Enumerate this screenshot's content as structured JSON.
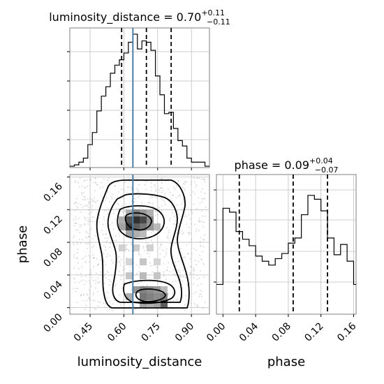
{
  "chart_data": {
    "type": "corner",
    "parameters": [
      "luminosity_distance",
      "phase"
    ],
    "truth": {
      "luminosity_distance": 0.64
    },
    "panels": [
      {
        "id": "hist_luminosity_distance",
        "type": "histogram-step",
        "title": {
          "base": "luminosity_distance = 0.70",
          "sup": "+0.11",
          "sub": "−0.11"
        },
        "xlim": [
          0.36,
          0.98
        ],
        "quantiles": [
          0.59,
          0.7,
          0.81
        ],
        "truth": 0.64,
        "bins": [
          0.36,
          0.38,
          0.4,
          0.42,
          0.44,
          0.46,
          0.48,
          0.5,
          0.52,
          0.54,
          0.56,
          0.58,
          0.6,
          0.62,
          0.64,
          0.66,
          0.68,
          0.7,
          0.72,
          0.74,
          0.76,
          0.78,
          0.8,
          0.82,
          0.84,
          0.86,
          0.88,
          0.9,
          0.92,
          0.94,
          0.96,
          0.98
        ],
        "counts": [
          0.01,
          0.02,
          0.04,
          0.07,
          0.17,
          0.26,
          0.42,
          0.53,
          0.6,
          0.7,
          0.76,
          0.8,
          0.85,
          0.93,
          0.99,
          0.88,
          0.94,
          0.93,
          0.87,
          0.68,
          0.54,
          0.4,
          0.41,
          0.29,
          0.2,
          0.16,
          0.07,
          0.04,
          0.04,
          0.04,
          0.01
        ],
        "xticks": [
          0.45,
          0.6,
          0.75,
          0.9
        ]
      },
      {
        "id": "hist_phase",
        "type": "histogram-step",
        "title": {
          "base": "phase = 0.09",
          "sup": "+0.04",
          "sub": "−0.07"
        },
        "xlim": [
          -0.008,
          0.163
        ],
        "quantiles": [
          0.02,
          0.086,
          0.128
        ],
        "bins": [
          -0.008,
          -0.004,
          0.0,
          0.004,
          0.008,
          0.012,
          0.016,
          0.02,
          0.024,
          0.028,
          0.032,
          0.036,
          0.04,
          0.044,
          0.048,
          0.052,
          0.056,
          0.06,
          0.064,
          0.068,
          0.072,
          0.076,
          0.08,
          0.084,
          0.088,
          0.092,
          0.096,
          0.1,
          0.104,
          0.108,
          0.112,
          0.116,
          0.12,
          0.124,
          0.128,
          0.132,
          0.136,
          0.14,
          0.144,
          0.148,
          0.152,
          0.156,
          0.16,
          0.163
        ],
        "counts": [
          0.23,
          0.23,
          0.82,
          0.82,
          0.79,
          0.79,
          0.64,
          0.64,
          0.58,
          0.58,
          0.53,
          0.53,
          0.45,
          0.45,
          0.41,
          0.41,
          0.38,
          0.38,
          0.43,
          0.43,
          0.47,
          0.47,
          0.55,
          0.55,
          0.59,
          0.59,
          0.77,
          0.77,
          0.92,
          0.92,
          0.89,
          0.89,
          0.8,
          0.8,
          0.59,
          0.59,
          0.46,
          0.46,
          0.54,
          0.54,
          0.41,
          0.41,
          0.23
        ],
        "xticks": [
          0.0,
          0.04,
          0.08,
          0.12,
          0.16
        ]
      },
      {
        "id": "scatter_density",
        "type": "2d-density",
        "x": "luminosity_distance",
        "y": "phase",
        "xlim": [
          0.36,
          0.98
        ],
        "ylim": [
          -0.008,
          0.163
        ],
        "xticks": [
          0.45,
          0.6,
          0.75,
          0.9
        ],
        "yticks": [
          0.0,
          0.04,
          0.08,
          0.12,
          0.16
        ],
        "truth_x": 0.64,
        "density_peaks": [
          {
            "x": 0.65,
            "y": 0.127,
            "weight": 1.0
          },
          {
            "x": 0.65,
            "y": 0.015,
            "weight": 0.85
          }
        ]
      }
    ],
    "xlabels": [
      "luminosity_distance",
      "phase"
    ],
    "ylabels": [
      "",
      "phase"
    ]
  },
  "labels": {
    "xlabel_left": "luminosity_distance",
    "xlabel_right": "phase",
    "ylabel_left": "phase",
    "hist1_title_base": "luminosity_distance = 0.70",
    "hist1_title_sup": "+0.11",
    "hist1_title_sub": "−0.11",
    "hist2_title_base": "phase = 0.09",
    "hist2_title_sup": "+0.04",
    "hist2_title_sub": "−0.07",
    "tick_x_lum": [
      "0.45",
      "0.60",
      "0.75",
      "0.90"
    ],
    "tick_y_phase": [
      "0.00",
      "0.04",
      "0.08",
      "0.12",
      "0.16"
    ],
    "tick_x_phase": [
      "0.00",
      "0.04",
      "0.08",
      "0.12",
      "0.16"
    ]
  },
  "colors": {
    "truth": "#4c7fa8",
    "step": "#000000",
    "grid": "#bfbfbf",
    "density_dark": "#000000",
    "scatter": "#b0b0b0"
  }
}
